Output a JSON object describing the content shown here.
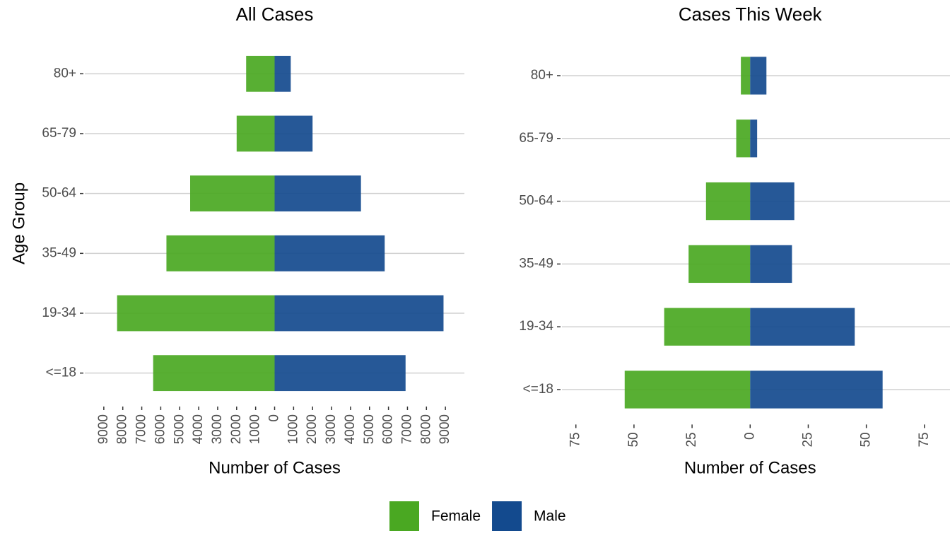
{
  "chart_data": [
    {
      "type": "pyramid",
      "title": "All Cases",
      "x_label": "Number of Cases",
      "y_label": "Age Group",
      "categories": [
        "<=18",
        "19-34",
        "35-49",
        "50-64",
        "65-79",
        "80+"
      ],
      "series": [
        {
          "name": "Female",
          "color": "#4aa822",
          "values": [
            -6400,
            -8300,
            -5700,
            -4450,
            -2000,
            -1500
          ]
        },
        {
          "name": "Male",
          "color": "#134a8e",
          "values": [
            6900,
            8900,
            5800,
            4550,
            2000,
            850
          ]
        }
      ],
      "xlim": [
        -10000,
        10000
      ],
      "xticks": [
        {
          "value": -9000,
          "label": "9000"
        },
        {
          "value": -8000,
          "label": "8000"
        },
        {
          "value": -7000,
          "label": "7000"
        },
        {
          "value": -6000,
          "label": "6000"
        },
        {
          "value": -5000,
          "label": "5000"
        },
        {
          "value": -4000,
          "label": "4000"
        },
        {
          "value": -3000,
          "label": "3000"
        },
        {
          "value": -2000,
          "label": "2000"
        },
        {
          "value": -1000,
          "label": "1000"
        },
        0,
        1000,
        2000,
        3000,
        4000,
        5000,
        6000,
        7000,
        8000,
        9000
      ],
      "grid": true
    },
    {
      "type": "pyramid",
      "title": "Cases This Week",
      "x_label": "Number of Cases",
      "categories": [
        "<=18",
        "19-34",
        "35-49",
        "50-64",
        "65-79",
        "80+"
      ],
      "series": [
        {
          "color": "#4aa822",
          "values": [
            -54,
            -37,
            -26.5,
            -19,
            -6,
            -4
          ]
        },
        {
          "color": "#134a8e",
          "values": [
            57,
            45,
            18,
            19,
            3,
            7
          ]
        }
      ],
      "xlim": [
        -81,
        86
      ],
      "xticks": [
        {
          "value": -75,
          "label": "75"
        },
        {
          "value": -50,
          "label": "50"
        },
        {
          "value": -25,
          "label": "25"
        },
        0,
        25,
        50,
        75
      ],
      "grid": true
    }
  ]
}
